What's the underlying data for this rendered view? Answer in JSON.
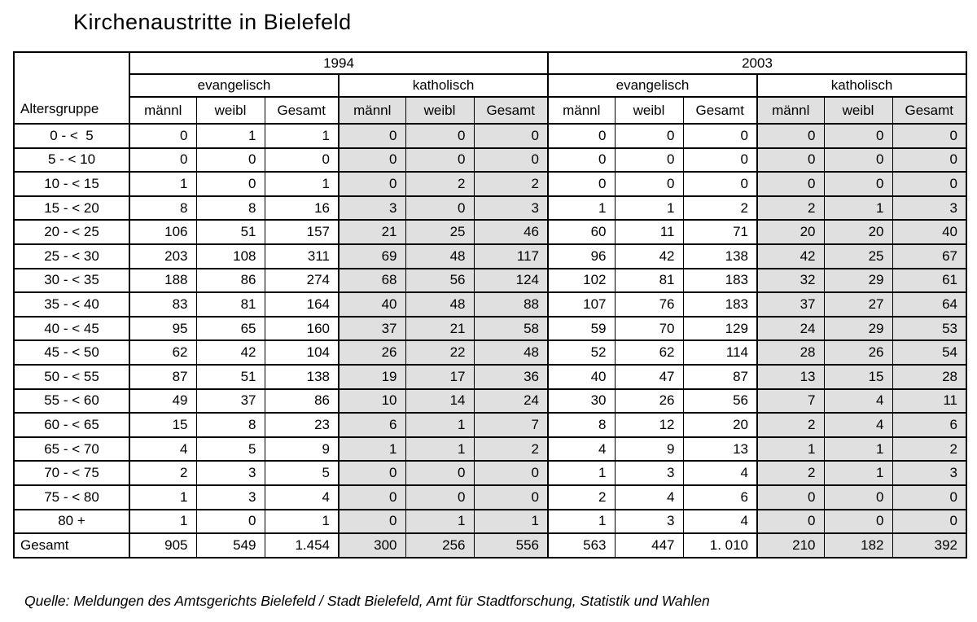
{
  "title": "Kirchenaustritte in Bielefeld",
  "source": "Quelle: Meldungen des Amtsgerichts Bielefeld / Stadt Bielefeld, Amt für Stadtforschung, Statistik und Wahlen",
  "colors": {
    "shaded_column_bg": "#e0e0e0",
    "border": "#000000",
    "background": "#ffffff"
  },
  "chart_data": {
    "type": "table",
    "title": "Kirchenaustritte in Bielefeld",
    "row_header": "Altersgruppe",
    "col_groups": [
      "1994",
      "2003"
    ],
    "subgroups": [
      "evangelisch",
      "katholisch"
    ],
    "columns": [
      "männl",
      "weibl",
      "Gesamt"
    ],
    "column_order_note": "values = 1994 evangelisch (männl, weibl, Gesamt), 1994 katholisch (männl, weibl, Gesamt), 2003 evangelisch (männl, weibl, Gesamt), 2003 katholisch (männl, weibl, Gesamt)",
    "rows": [
      {
        "label": "0 - <  5",
        "values": [
          "0",
          "1",
          "1",
          "0",
          "0",
          "0",
          "0",
          "0",
          "0",
          "0",
          "0",
          "0"
        ]
      },
      {
        "label": "5 - < 10",
        "values": [
          "0",
          "0",
          "0",
          "0",
          "0",
          "0",
          "0",
          "0",
          "0",
          "0",
          "0",
          "0"
        ]
      },
      {
        "label": "10 - < 15",
        "values": [
          "1",
          "0",
          "1",
          "0",
          "2",
          "2",
          "0",
          "0",
          "0",
          "0",
          "0",
          "0"
        ]
      },
      {
        "label": "15 - < 20",
        "values": [
          "8",
          "8",
          "16",
          "3",
          "0",
          "3",
          "1",
          "1",
          "2",
          "2",
          "1",
          "3"
        ]
      },
      {
        "label": "20 - < 25",
        "values": [
          "106",
          "51",
          "157",
          "21",
          "25",
          "46",
          "60",
          "11",
          "71",
          "20",
          "20",
          "40"
        ]
      },
      {
        "label": "25 - < 30",
        "values": [
          "203",
          "108",
          "311",
          "69",
          "48",
          "117",
          "96",
          "42",
          "138",
          "42",
          "25",
          "67"
        ]
      },
      {
        "label": "30 - < 35",
        "values": [
          "188",
          "86",
          "274",
          "68",
          "56",
          "124",
          "102",
          "81",
          "183",
          "32",
          "29",
          "61"
        ]
      },
      {
        "label": "35 - < 40",
        "values": [
          "83",
          "81",
          "164",
          "40",
          "48",
          "88",
          "107",
          "76",
          "183",
          "37",
          "27",
          "64"
        ]
      },
      {
        "label": "40 - < 45",
        "values": [
          "95",
          "65",
          "160",
          "37",
          "21",
          "58",
          "59",
          "70",
          "129",
          "24",
          "29",
          "53"
        ]
      },
      {
        "label": "45 - < 50",
        "values": [
          "62",
          "42",
          "104",
          "26",
          "22",
          "48",
          "52",
          "62",
          "114",
          "28",
          "26",
          "54"
        ]
      },
      {
        "label": "50 - < 55",
        "values": [
          "87",
          "51",
          "138",
          "19",
          "17",
          "36",
          "40",
          "47",
          "87",
          "13",
          "15",
          "28"
        ]
      },
      {
        "label": "55 - < 60",
        "values": [
          "49",
          "37",
          "86",
          "10",
          "14",
          "24",
          "30",
          "26",
          "56",
          "7",
          "4",
          "11"
        ]
      },
      {
        "label": "60 - < 65",
        "values": [
          "15",
          "8",
          "23",
          "6",
          "1",
          "7",
          "8",
          "12",
          "20",
          "2",
          "4",
          "6"
        ]
      },
      {
        "label": "65 - < 70",
        "values": [
          "4",
          "5",
          "9",
          "1",
          "1",
          "2",
          "4",
          "9",
          "13",
          "1",
          "1",
          "2"
        ]
      },
      {
        "label": "70 - < 75",
        "values": [
          "2",
          "3",
          "5",
          "0",
          "0",
          "0",
          "1",
          "3",
          "4",
          "2",
          "1",
          "3"
        ]
      },
      {
        "label": "75 - < 80",
        "values": [
          "1",
          "3",
          "4",
          "0",
          "0",
          "0",
          "2",
          "4",
          "6",
          "0",
          "0",
          "0"
        ]
      },
      {
        "label": "80 +",
        "values": [
          "1",
          "0",
          "1",
          "0",
          "1",
          "1",
          "1",
          "3",
          "4",
          "0",
          "0",
          "0"
        ]
      }
    ],
    "total_row": {
      "label": "Gesamt",
      "values": [
        "905",
        "549",
        "1.454",
        "300",
        "256",
        "556",
        "563",
        "447",
        "1. 010",
        "210",
        "182",
        "392"
      ]
    }
  }
}
